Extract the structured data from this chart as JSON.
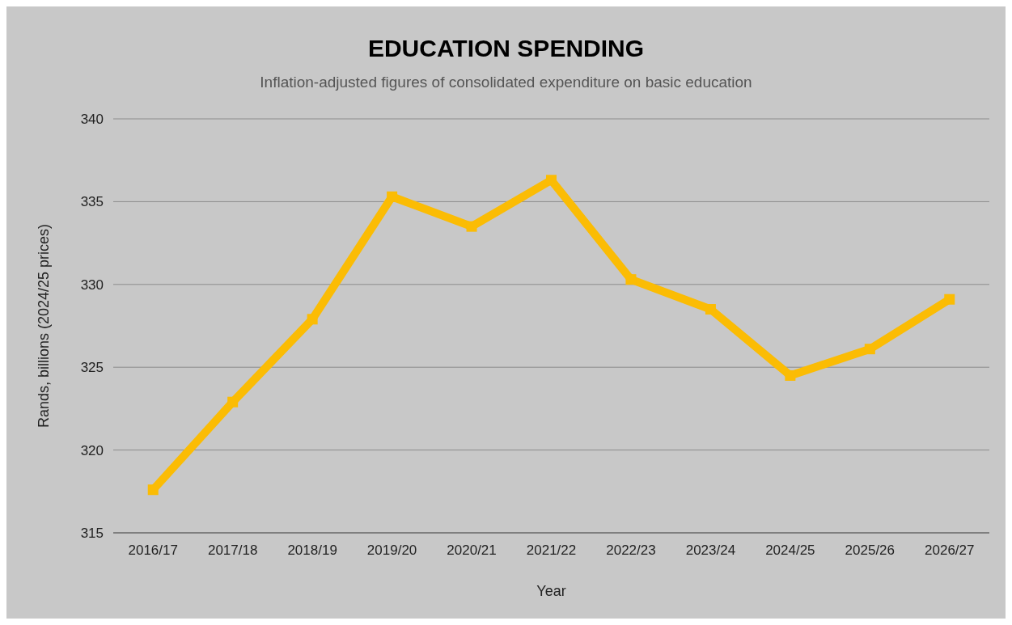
{
  "chart_data": {
    "type": "line",
    "title": "EDUCATION SPENDING",
    "subtitle": "Inflation-adjusted figures of consolidated expenditure on basic education",
    "xlabel": "Year",
    "ylabel": "Rands, billions (2024/25 prices)",
    "categories": [
      "2016/17",
      "2017/18",
      "2018/19",
      "2019/20",
      "2020/21",
      "2021/22",
      "2022/23",
      "2023/24",
      "2024/25",
      "2025/26",
      "2026/27"
    ],
    "series": [
      {
        "color": "#fbbc04",
        "values": [
          317.6,
          322.9,
          327.9,
          335.3,
          333.5,
          336.3,
          330.3,
          328.5,
          324.5,
          326.1,
          329.1
        ]
      }
    ],
    "ylim": [
      315,
      340
    ],
    "yticks": [
      315,
      320,
      325,
      330,
      335,
      340
    ],
    "grid": "y",
    "marker": "square",
    "line_style": "solid"
  }
}
